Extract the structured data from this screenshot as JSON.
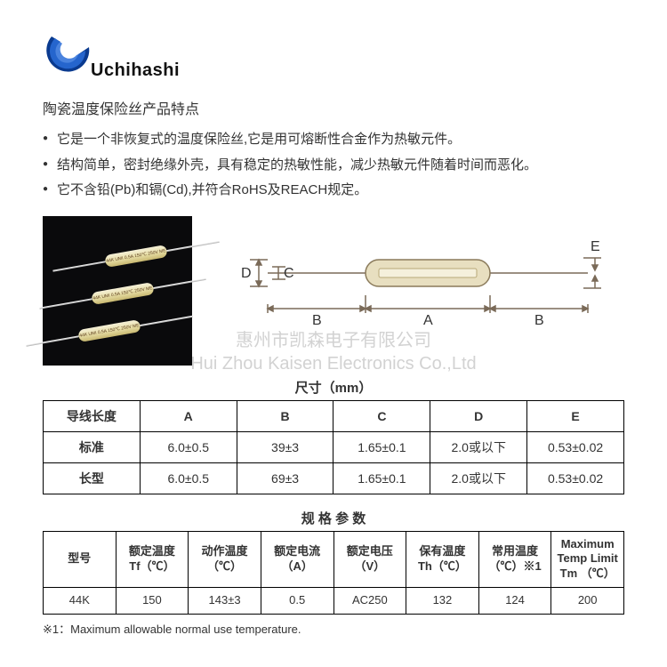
{
  "brand": {
    "name": "Uchihashi",
    "logo_colors": [
      "#0a3a8f",
      "#1a5fd0",
      "#3a7de0"
    ]
  },
  "title": "陶瓷温度保险丝产品特点",
  "bullets": [
    "它是一个非恢复式的温度保险丝,它是用可熔断性合金作为热敏元件。",
    "结构简单，密封绝缘外壳，具有稳定的热敏性能，减少热敏元件随着时间而恶化。",
    "它不含铅(Pb)和镉(Cd),并符合RoHS及REACH规定。"
  ],
  "product_marking": "44K UMI 0.5A 150℃ 250V ME",
  "diagram": {
    "labels": {
      "A": "A",
      "B": "B",
      "C": "C",
      "D": "D",
      "E": "E"
    },
    "body_fill": "#e8dfc0",
    "body_stroke": "#8a7a5a",
    "line_color": "#7a6a58"
  },
  "dim_table": {
    "title": "尺寸（mm）",
    "header": [
      "导线长度",
      "A",
      "B",
      "C",
      "D",
      "E"
    ],
    "rows": [
      [
        "标准",
        "6.0±0.5",
        "39±3",
        "1.65±0.1",
        "2.0或以下",
        "0.53±0.02"
      ],
      [
        "长型",
        "6.0±0.5",
        "69±3",
        "1.65±0.1",
        "2.0或以下",
        "0.53±0.02"
      ]
    ]
  },
  "spec_table": {
    "title": "规 格 参 数",
    "header": [
      "型号",
      "额定温度\nTf（℃）",
      "动作温度\n（℃）",
      "额定电流\n（A）",
      "额定电压\n（V）",
      "保有温度\nTh（℃）",
      "常用温度\n（℃）※1",
      "Maximum\nTemp Limit\nTm （℃）"
    ],
    "rows": [
      [
        "44K",
        "150",
        "143±3",
        "0.5",
        "AC250",
        "132",
        "124",
        "200"
      ]
    ]
  },
  "footnote": "※1：Maximum allowable normal use temperature.",
  "watermark": {
    "cn": "惠州市凯森电子有限公司",
    "en": "Hui Zhou Kaisen Electronics Co.,Ltd"
  },
  "colors": {
    "text": "#333333",
    "border": "#000000",
    "bg": "#ffffff",
    "photo_bg": "#0a0a0c",
    "watermark": "rgba(180,180,180,0.6)"
  }
}
